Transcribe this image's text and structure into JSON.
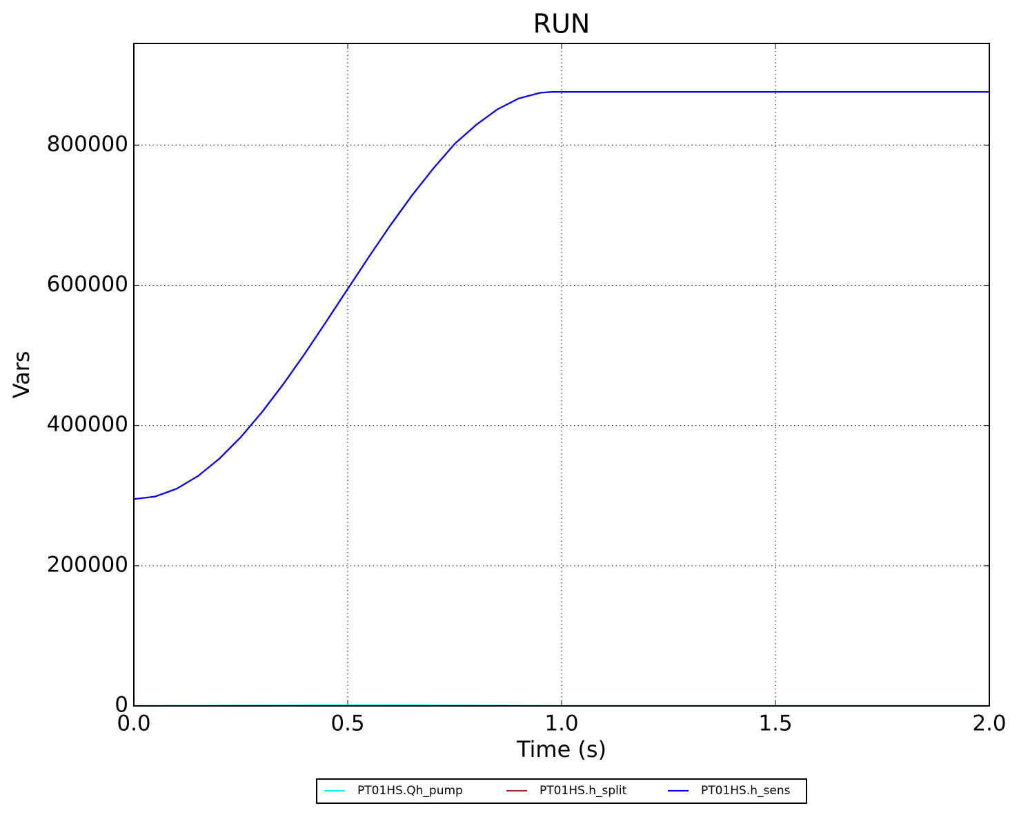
{
  "chart_data": {
    "type": "line",
    "title": "RUN",
    "xlabel": "Time (s)",
    "ylabel": "Vars",
    "x": [
      0,
      0.05,
      0.1,
      0.15,
      0.2,
      0.25,
      0.3,
      0.35,
      0.4,
      0.45,
      0.5,
      0.55,
      0.6,
      0.65,
      0.7,
      0.75,
      0.8,
      0.85,
      0.9,
      0.95,
      0.98,
      1.0,
      1.5,
      2.0
    ],
    "series": [
      {
        "name": "PT01HS.Qh_pump",
        "color": "#00ffff",
        "values": [
          0,
          20,
          90,
          200,
          340,
          500,
          680,
          860,
          1030,
          1160,
          1240,
          1250,
          1200,
          1100,
          950,
          780,
          600,
          420,
          250,
          110,
          40,
          0,
          0,
          0
        ]
      },
      {
        "name": "PT01HS.h_split",
        "color": "#a52a2a",
        "values": [
          295000,
          298700,
          309800,
          327900,
          352700,
          383400,
          419400,
          459500,
          502800,
          548400,
          594800,
          641000,
          685800,
          728000,
          766600,
          801800,
          828700,
          851100,
          866600,
          874700,
          876000,
          876000,
          876000,
          876000
        ]
      },
      {
        "name": "PT01HS.h_sens",
        "color": "#0000ff",
        "values": [
          295000,
          298700,
          309800,
          327900,
          352700,
          383400,
          419400,
          459500,
          502800,
          548400,
          594800,
          641000,
          685800,
          728000,
          766600,
          801800,
          828700,
          851100,
          866600,
          874700,
          876000,
          876000,
          876000,
          876000
        ]
      }
    ],
    "xlim": [
      0,
      2.0
    ],
    "ylim": [
      0,
      945000
    ],
    "xticks": [
      {
        "value": 0,
        "label": "0.0"
      },
      {
        "value": 0.5,
        "label": "0.5"
      },
      {
        "value": 1.0,
        "label": "1.0"
      },
      {
        "value": 1.5,
        "label": "1.5"
      },
      {
        "value": 2.0,
        "label": "2.0"
      }
    ],
    "yticks": [
      0,
      200000,
      400000,
      600000,
      800000
    ],
    "grid": true,
    "legend": "bottom"
  }
}
